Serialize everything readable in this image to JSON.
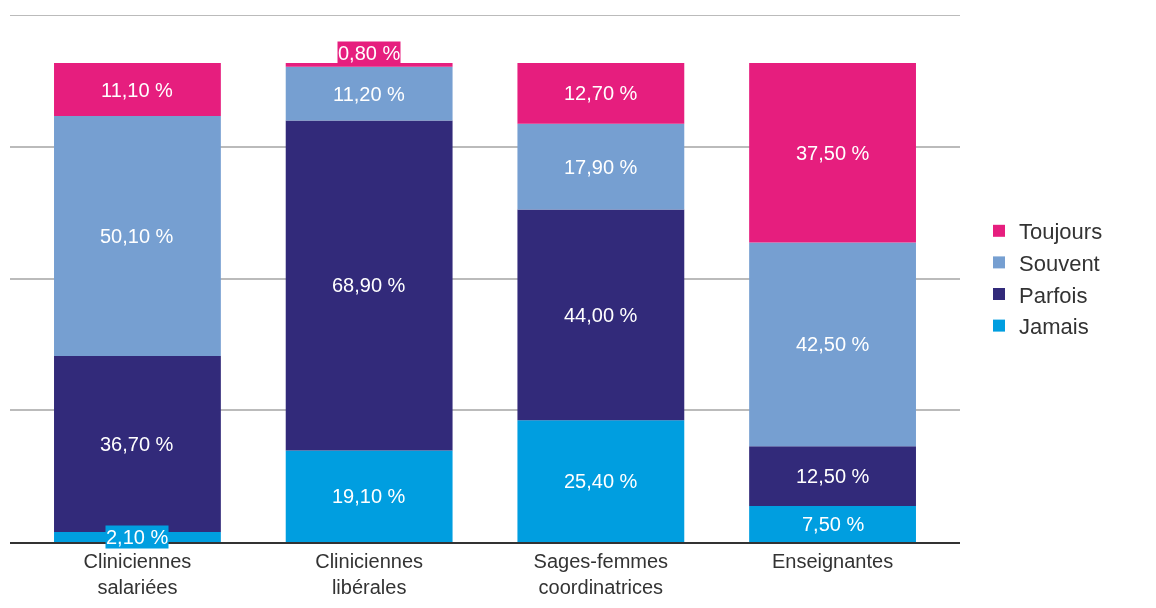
{
  "chart_data": {
    "type": "bar",
    "stacked": true,
    "categories": [
      "Cliniciennes\nsalariées",
      "Cliniciennes\nlibérales",
      "Sages-femmes\ncoordinatrices",
      "Enseignantes"
    ],
    "series": [
      {
        "name": "Jamais",
        "color": "#009ee0",
        "values": [
          2.1,
          19.1,
          25.4,
          7.5
        ],
        "value_labels": [
          "2,10 %",
          "19,10 %",
          "25,40 %",
          "7,50 %"
        ]
      },
      {
        "name": "Parfois",
        "color": "#322a7a",
        "values": [
          36.7,
          68.9,
          44.0,
          12.5
        ],
        "value_labels": [
          "36,70 %",
          "68,90 %",
          "44,00 %",
          "12,50 %"
        ]
      },
      {
        "name": "Souvent",
        "color": "#769fd1",
        "values": [
          50.1,
          11.2,
          17.9,
          42.5
        ],
        "value_labels": [
          "50,10 %",
          "11,20 %",
          "17,90 %",
          "42,50 %"
        ]
      },
      {
        "name": "Toujours",
        "color": "#e61e7e",
        "values": [
          11.1,
          0.8,
          12.7,
          37.5
        ],
        "value_labels": [
          "11,10 %",
          "0,80 %",
          "12,70 %",
          "37,50 %"
        ]
      }
    ],
    "ylim": [
      0,
      110
    ],
    "yticks": [
      {
        "value": 0,
        "label": null
      },
      {
        "value": 27.5,
        "label": null
      },
      {
        "value": 55,
        "label": null
      },
      {
        "value": 82.5,
        "label": null
      },
      {
        "value": 110,
        "label": null
      }
    ],
    "grid": "y",
    "legend": "right"
  }
}
